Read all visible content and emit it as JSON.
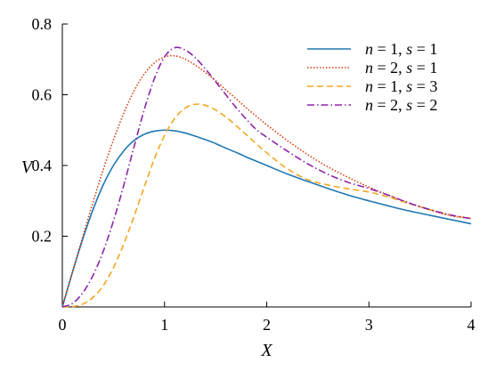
{
  "chart_data": {
    "type": "line",
    "title": "",
    "xlabel": "X",
    "ylabel": "V",
    "xlim": [
      0,
      4
    ],
    "ylim": [
      0,
      0.8
    ],
    "xticks": [
      0,
      1,
      2,
      3,
      4
    ],
    "xtick_labels": [
      "0",
      "1",
      "2",
      "3",
      "4"
    ],
    "yticks": [
      0.2,
      0.4,
      0.6,
      0.8
    ],
    "ytick_labels": [
      "0.2",
      "0.4",
      "0.6",
      "0.8"
    ],
    "grid": false,
    "legend_position": "top-right",
    "x": [
      0,
      0.1,
      0.2,
      0.3,
      0.4,
      0.5,
      0.6,
      0.7,
      0.8,
      0.9,
      1.0,
      1.1,
      1.2,
      1.3,
      1.4,
      1.5,
      1.6,
      1.7,
      1.8,
      1.9,
      2.0,
      2.2,
      2.4,
      2.6,
      2.8,
      3.0,
      3.2,
      3.4,
      3.6,
      3.8,
      4.0
    ],
    "series": [
      {
        "name": "n = 1, s = 1",
        "n": "1",
        "s": "1",
        "color": "#1f78b4",
        "dash": "",
        "values": [
          0,
          0.099,
          0.192,
          0.275,
          0.345,
          0.4,
          0.441,
          0.47,
          0.488,
          0.497,
          0.5,
          0.498,
          0.492,
          0.483,
          0.473,
          0.462,
          0.449,
          0.437,
          0.424,
          0.412,
          0.4,
          0.376,
          0.355,
          0.335,
          0.316,
          0.3,
          0.285,
          0.271,
          0.259,
          0.247,
          0.235
        ]
      },
      {
        "name": "n = 2, s = 1",
        "n": "2",
        "s": "1",
        "color": "#d6400f",
        "dash": "1.5 2",
        "values": [
          0,
          0.1,
          0.199,
          0.296,
          0.388,
          0.472,
          0.547,
          0.61,
          0.658,
          0.69,
          0.707,
          0.71,
          0.701,
          0.684,
          0.663,
          0.64,
          0.614,
          0.589,
          0.563,
          0.539,
          0.515,
          0.471,
          0.431,
          0.396,
          0.366,
          0.339,
          0.315,
          0.293,
          0.274,
          0.258,
          0.25
        ]
      },
      {
        "name": "n = 1, s = 3",
        "n": "1",
        "s": "3",
        "color": "#f5a623",
        "dash": "7 4",
        "values": [
          0,
          0.001,
          0.008,
          0.027,
          0.06,
          0.111,
          0.177,
          0.255,
          0.338,
          0.418,
          0.485,
          0.533,
          0.562,
          0.573,
          0.57,
          0.557,
          0.537,
          0.513,
          0.487,
          0.461,
          0.436,
          0.391,
          0.36,
          0.345,
          0.334,
          0.325,
          0.31,
          0.292,
          0.275,
          0.26,
          0.25
        ]
      },
      {
        "name": "n = 2, s = 2",
        "n": "2",
        "s": "2",
        "color": "#8e24aa",
        "dash": "8 3 1.5 3",
        "values": [
          0,
          0.01,
          0.04,
          0.089,
          0.157,
          0.243,
          0.343,
          0.451,
          0.556,
          0.645,
          0.707,
          0.733,
          0.727,
          0.705,
          0.673,
          0.637,
          0.6,
          0.564,
          0.531,
          0.501,
          0.48,
          0.441,
          0.405,
          0.375,
          0.352,
          0.335,
          0.315,
          0.293,
          0.275,
          0.26,
          0.25
        ]
      }
    ]
  }
}
